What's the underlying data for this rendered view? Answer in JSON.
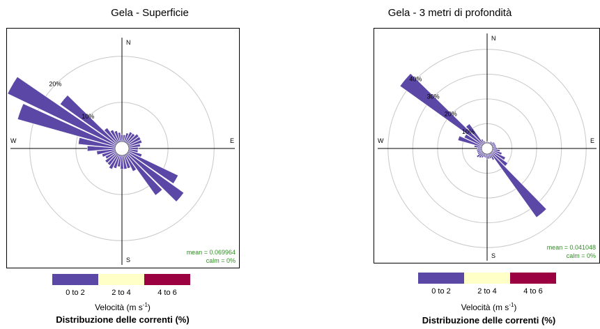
{
  "legend": {
    "bins": [
      "0 to 2",
      "2 to 4",
      "4 to 6"
    ],
    "colors": [
      "#5b47a6",
      "#ffffc8",
      "#9b0040"
    ],
    "unit_prefix": "Velocità (m s",
    "unit_exp": "-1",
    "unit_suffix": ")",
    "caption": "Distribuzione delle correnti (%)"
  },
  "chart_data": [
    {
      "type": "windrose",
      "title": "Gela - Superficie",
      "compass": [
        "N",
        "E",
        "S",
        "W"
      ],
      "rings": [
        10,
        20
      ],
      "ring_labels": [
        "10%",
        "20%"
      ],
      "ring_label_direction_deg": 315,
      "r_max": 26,
      "mean_label": "mean = 0.069964",
      "calm_label": "calm = 0%",
      "bar_color": "#5b47a6",
      "directions_deg": [
        0,
        10,
        20,
        30,
        40,
        50,
        60,
        70,
        80,
        90,
        100,
        110,
        120,
        130,
        140,
        150,
        160,
        170,
        180,
        190,
        200,
        210,
        220,
        230,
        240,
        250,
        260,
        270,
        280,
        290,
        300,
        310,
        320,
        330,
        340,
        350
      ],
      "values": [
        1.5,
        1.5,
        2,
        2.5,
        2.5,
        3,
        3,
        3,
        2.5,
        2,
        2,
        3,
        12,
        15,
        11,
        4,
        3,
        3,
        3,
        2.5,
        3,
        3.5,
        3,
        3,
        2.5,
        3,
        4,
        6,
        8,
        22,
        26,
        15,
        4,
        3,
        2.5,
        2
      ]
    },
    {
      "type": "windrose",
      "title": "Gela - 3 metri di profondità",
      "compass": [
        "N",
        "E",
        "S",
        "W"
      ],
      "rings": [
        10,
        20,
        30,
        40
      ],
      "ring_labels": [
        "10%",
        "20%",
        "30%",
        "40%"
      ],
      "ring_label_direction_deg": 315,
      "r_max": 45,
      "mean_label": "mean = 0.041048",
      "calm_label": "calm = 0%",
      "bar_color": "#5b47a6",
      "directions_deg": [
        0,
        10,
        20,
        30,
        40,
        50,
        60,
        70,
        80,
        90,
        100,
        110,
        120,
        130,
        140,
        150,
        160,
        170,
        180,
        190,
        200,
        210,
        220,
        230,
        240,
        250,
        260,
        270,
        280,
        290,
        300,
        310,
        320,
        330,
        340,
        350
      ],
      "values": [
        0.5,
        0.5,
        0.5,
        1,
        1,
        1.5,
        1.5,
        1.5,
        1.5,
        2,
        3,
        4,
        6,
        8,
        32,
        3,
        2,
        2,
        2,
        1.5,
        1.5,
        2,
        2.5,
        3,
        2,
        2,
        2,
        1.5,
        3,
        10,
        8,
        41,
        10,
        2,
        1,
        0.5
      ]
    }
  ]
}
